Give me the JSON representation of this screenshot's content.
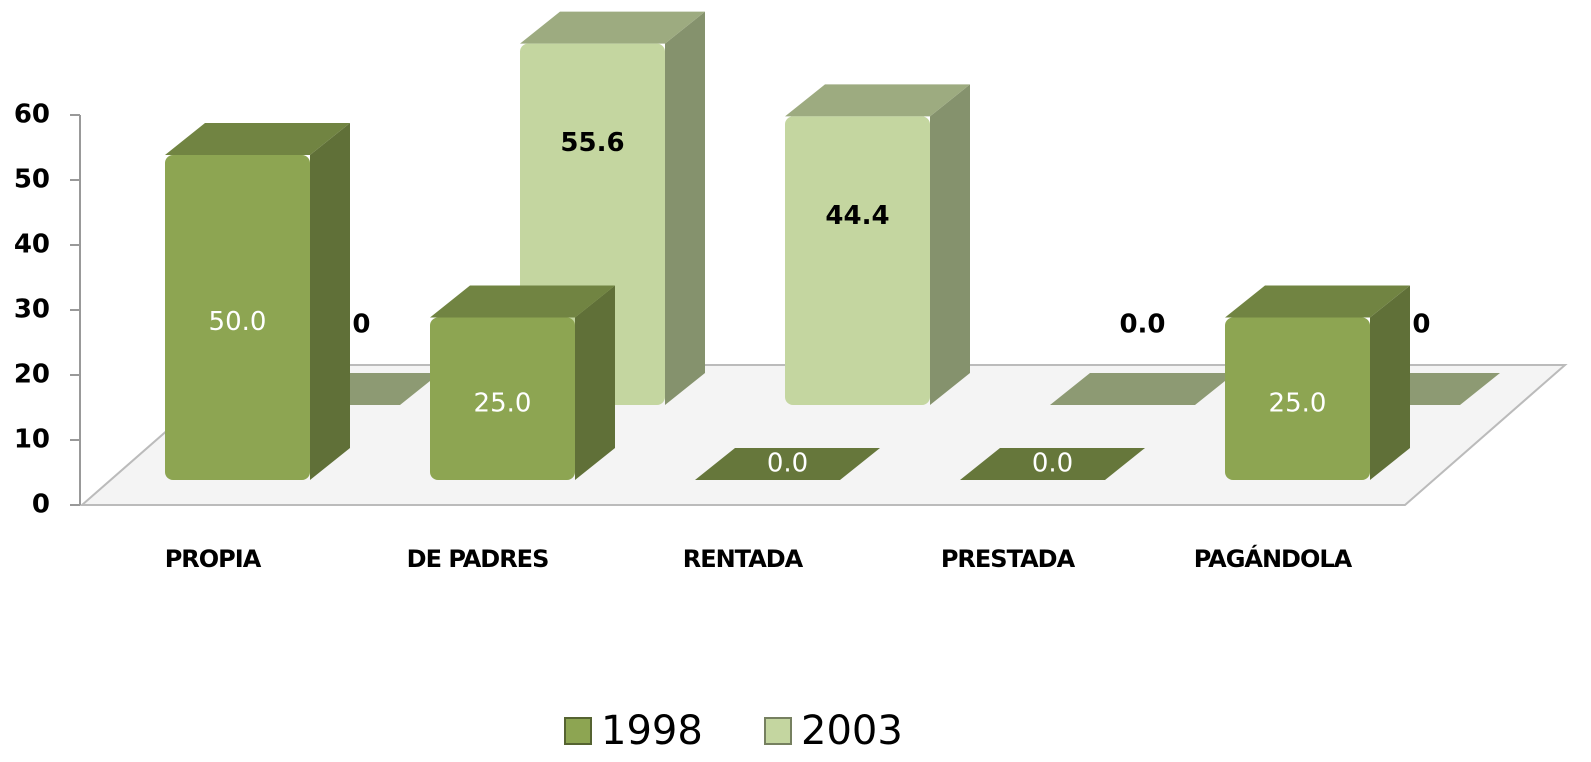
{
  "chart_data": {
    "type": "bar3d",
    "categories": [
      "PROPIA",
      "DE PADRES",
      "RENTADA",
      "PRESTADA",
      "PAGÁNDOLA"
    ],
    "series": [
      {
        "name": "1998",
        "color": "#8da552",
        "values": [
          50,
          25,
          0,
          0,
          25
        ],
        "value_labels": [
          "50.0",
          "25.0",
          "0.0",
          "0.0",
          "25.0"
        ]
      },
      {
        "name": "2003",
        "color": "#c4d6a0",
        "values": [
          0,
          55.6,
          44.4,
          0,
          0
        ],
        "value_labels": [
          "0.0",
          "55.6",
          "44.4",
          "0.0",
          "0.0"
        ]
      }
    ],
    "ylim": [
      0,
      60
    ],
    "yticks": [
      0,
      10,
      20,
      30,
      40,
      50,
      60
    ],
    "grid": false,
    "legend": "bottom"
  }
}
